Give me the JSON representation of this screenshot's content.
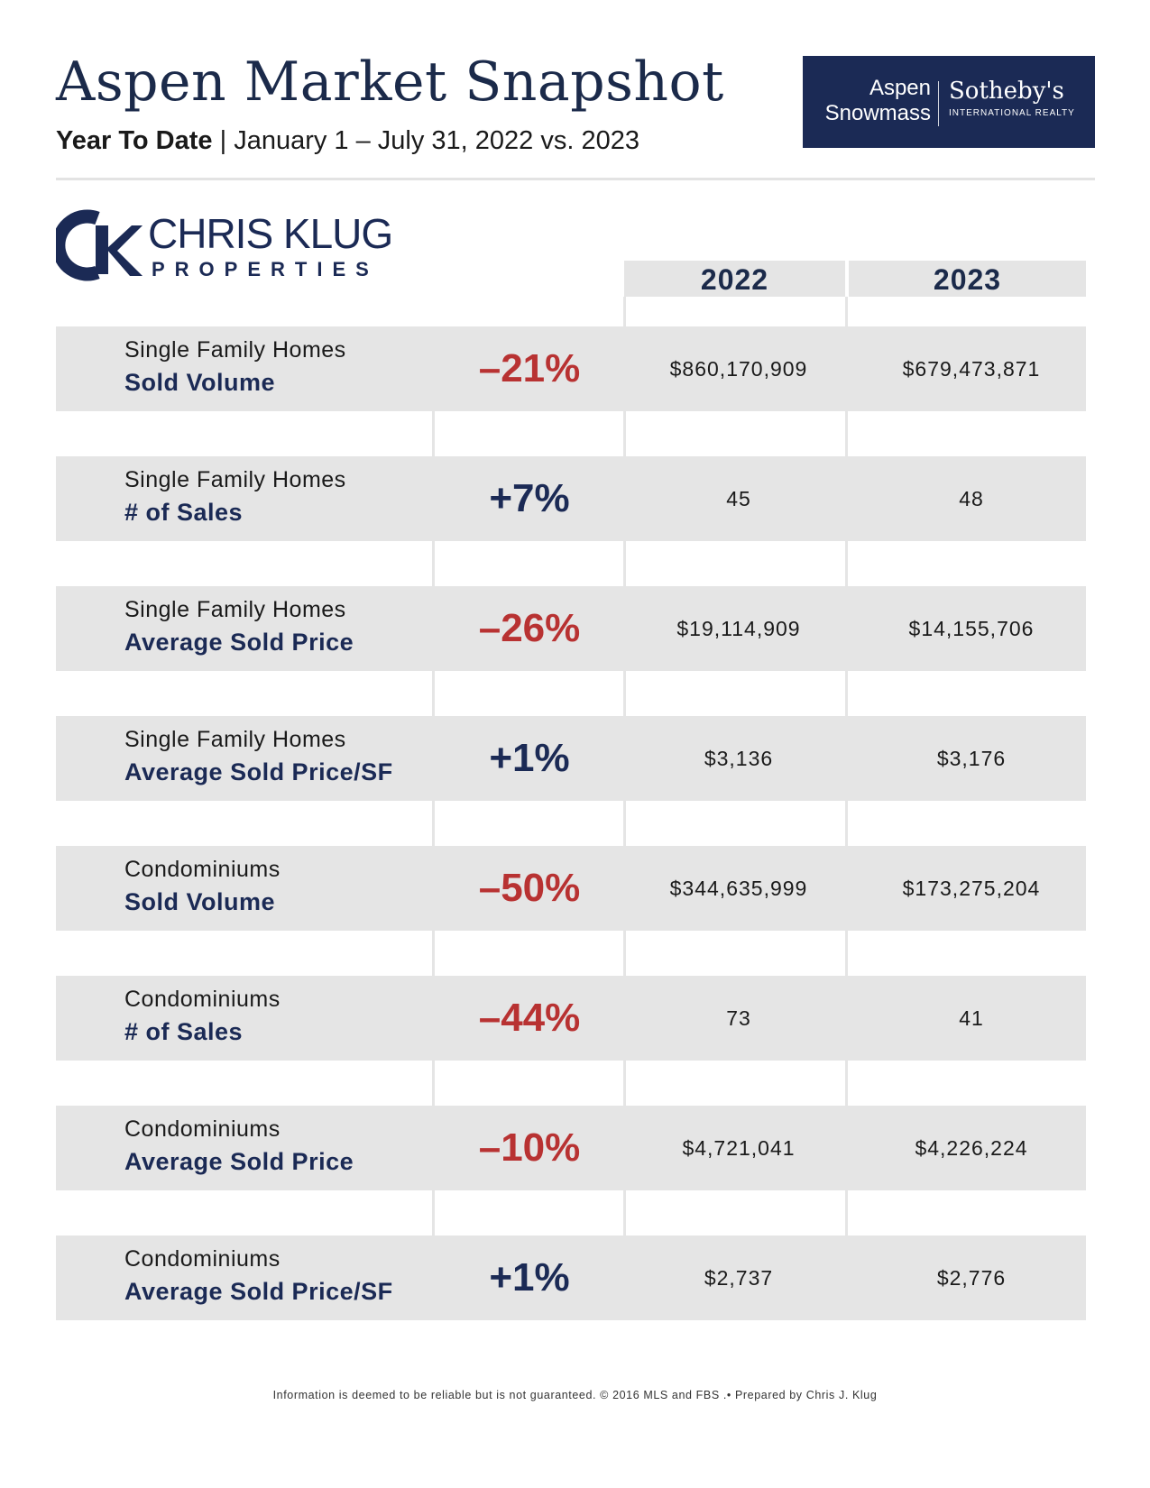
{
  "header": {
    "title": "Aspen Market Snapshot",
    "subtitle_bold": "Year To Date",
    "subtitle_rest": " | January 1 – July 31, 2022 vs. 2023"
  },
  "brand": {
    "left_line1": "Aspen",
    "left_line2": "Snowmass",
    "name": "Sotheby's",
    "sub": "INTERNATIONAL REALTY",
    "bg_color": "#1b2a55"
  },
  "logo": {
    "name": "CHRIS KLUG",
    "sub": "PROPERTIES"
  },
  "columns": [
    "2022",
    "2023"
  ],
  "rows": [
    {
      "category": "Single Family Homes",
      "metric": "Sold Volume",
      "change": "–21%",
      "dir": "neg",
      "v2022": "$860,170,909",
      "v2023": "$679,473,871"
    },
    {
      "category": "Single Family Homes",
      "metric": "# of Sales",
      "change": "+7%",
      "dir": "pos",
      "v2022": "45",
      "v2023": "48"
    },
    {
      "category": "Single Family Homes",
      "metric": "Average Sold Price",
      "change": "–26%",
      "dir": "neg",
      "v2022": "$19,114,909",
      "v2023": "$14,155,706"
    },
    {
      "category": "Single Family Homes",
      "metric": "Average Sold Price/SF",
      "change": "+1%",
      "dir": "pos",
      "v2022": "$3,136",
      "v2023": "$3,176"
    },
    {
      "category": "Condominiums",
      "metric": "Sold Volume",
      "change": "–50%",
      "dir": "neg",
      "v2022": "$344,635,999",
      "v2023": "$173,275,204"
    },
    {
      "category": "Condominiums",
      "metric": "# of Sales",
      "change": "–44%",
      "dir": "neg",
      "v2022": "73",
      "v2023": "41"
    },
    {
      "category": "Condominiums",
      "metric": "Average Sold Price",
      "change": "–10%",
      "dir": "neg",
      "v2022": "$4,721,041",
      "v2023": "$4,226,224"
    },
    {
      "category": "Condominiums",
      "metric": "Average Sold Price/SF",
      "change": "+1%",
      "dir": "pos",
      "v2022": "$2,737",
      "v2023": "$2,776"
    }
  ],
  "footer": "Information is deemed to be reliable but is not guaranteed. © 2016 MLS and FBS .• Prepared by Chris J. Klug",
  "colors": {
    "negative": "#b83232",
    "positive": "#1b2a55",
    "navy": "#1b2a55"
  }
}
